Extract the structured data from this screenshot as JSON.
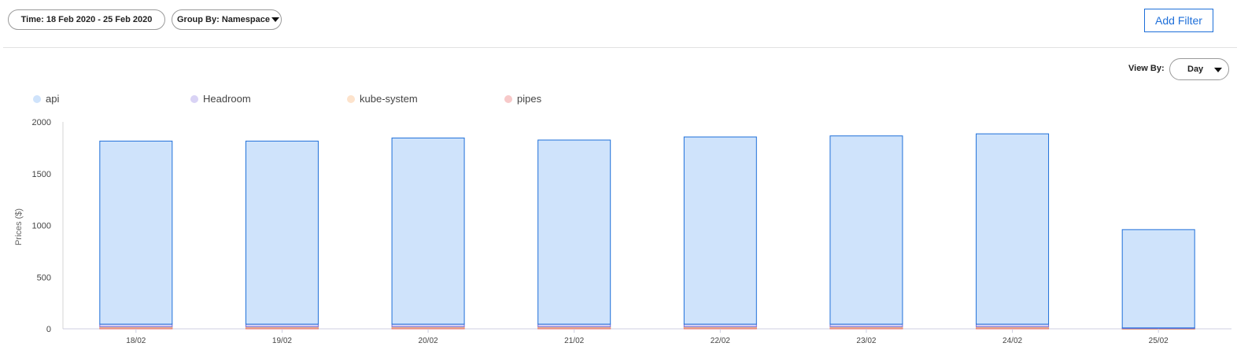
{
  "toolbar": {
    "time_label": "Time: 18 Feb 2020 - 25 Feb 2020",
    "group_by_label": "Group By: Namespace",
    "add_filter_label": "Add Filter"
  },
  "view_by": {
    "label": "View By:",
    "value": "Day"
  },
  "colors": {
    "accent": "#1e6fd9",
    "api": "#cfe3fb",
    "api_stroke": "#1e6fd9",
    "headroom": "#d9d3f5",
    "kube_system": "#fde3cc",
    "pipes": "#f7c9c9"
  },
  "chart_data": {
    "type": "bar",
    "stacked": true,
    "ylabel": "Prices ($)",
    "ylim": [
      0,
      2000
    ],
    "yticks": [
      0,
      500,
      1000,
      1500,
      2000
    ],
    "categories": [
      "18/02",
      "19/02",
      "20/02",
      "21/02",
      "22/02",
      "23/02",
      "24/02",
      "25/02"
    ],
    "legend_position": "top-left",
    "series": [
      {
        "name": "api",
        "color": "#cfe3fb",
        "stroke": "#1e6fd9",
        "values": [
          1770,
          1770,
          1800,
          1780,
          1810,
          1820,
          1840,
          950
        ]
      },
      {
        "name": "Headroom",
        "color": "#d9d3f5",
        "stroke": "#7b6fd9",
        "values": [
          25,
          25,
          25,
          25,
          25,
          25,
          25,
          5
        ]
      },
      {
        "name": "kube-system",
        "color": "#fde3cc",
        "stroke": "#f0b27a",
        "values": [
          10,
          10,
          10,
          10,
          10,
          10,
          10,
          2
        ]
      },
      {
        "name": "pipes",
        "color": "#f7c9c9",
        "stroke": "#e07070",
        "values": [
          10,
          10,
          10,
          10,
          10,
          10,
          10,
          2
        ]
      }
    ]
  }
}
